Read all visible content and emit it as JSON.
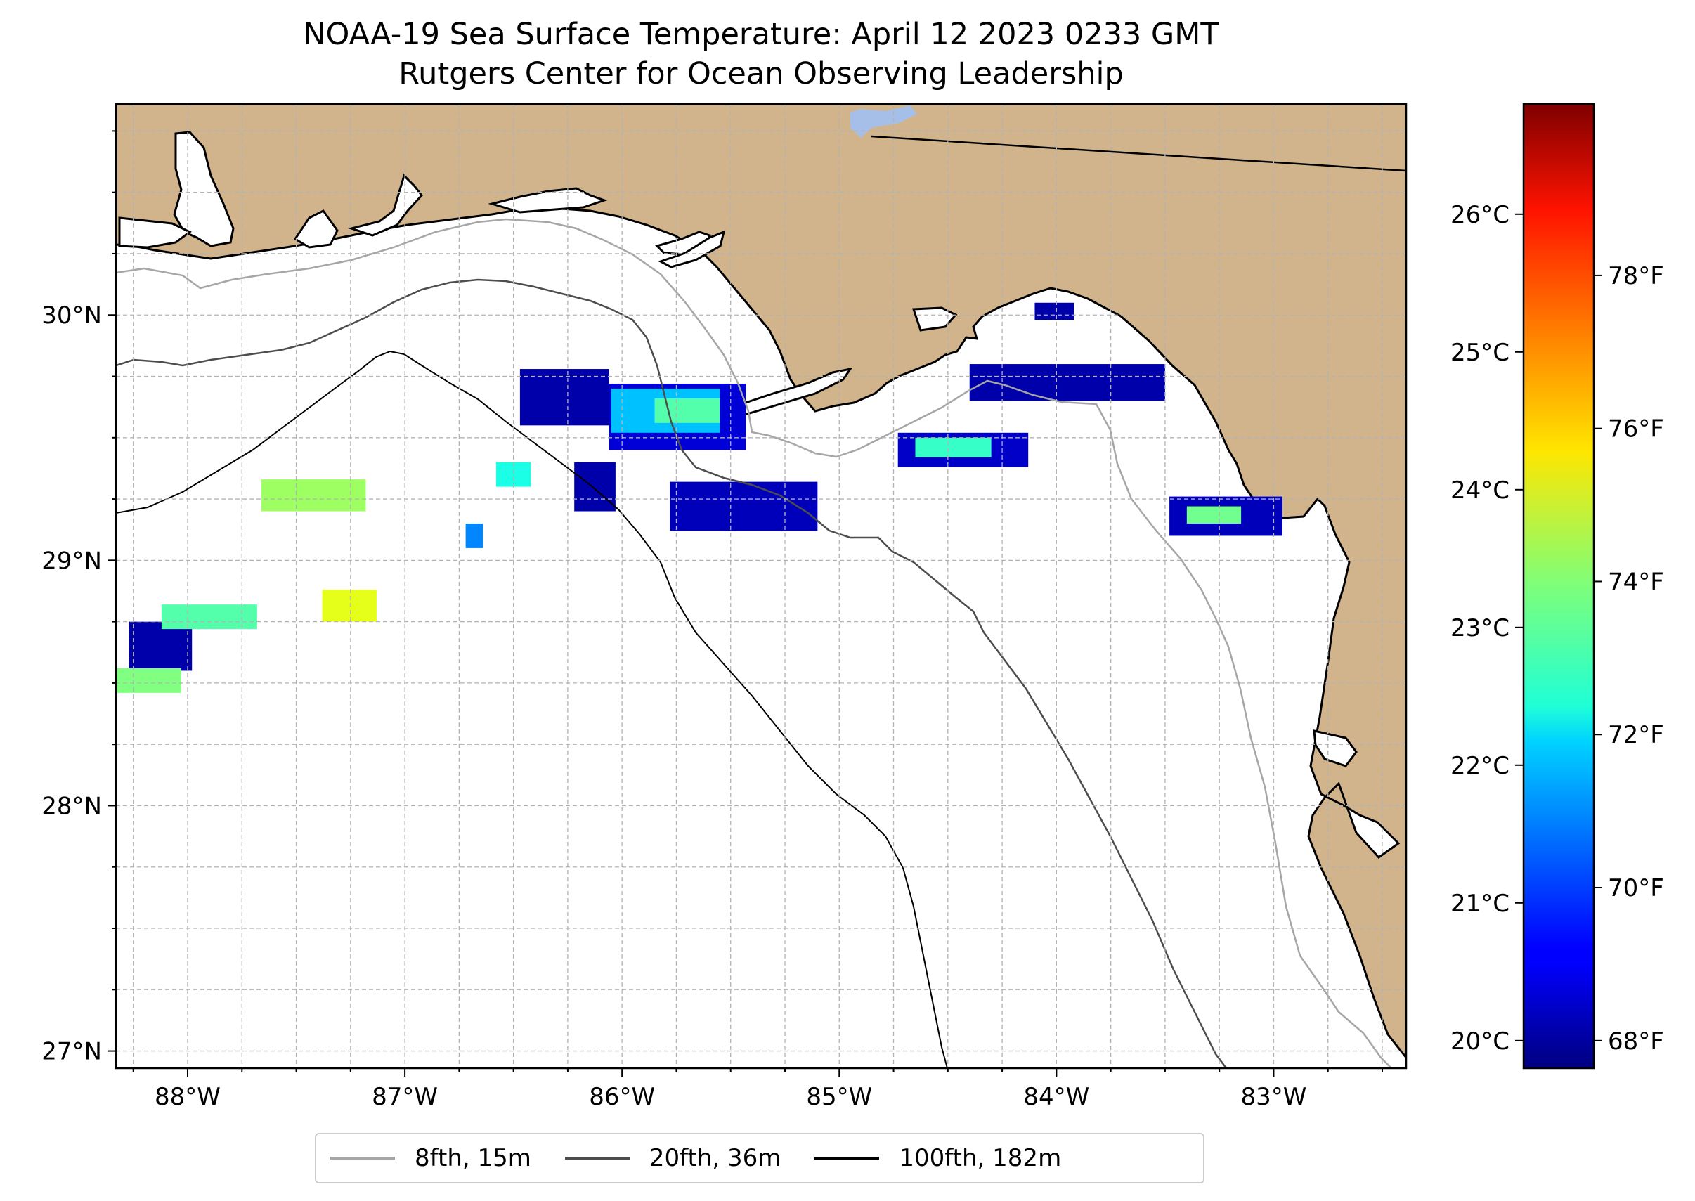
{
  "title": {
    "line1": "NOAA-19 Sea Surface Temperature: April 12 2023 0233 GMT",
    "line2": "Rutgers Center for Ocean Observing Leadership"
  },
  "map": {
    "lon_range": [
      -88.33,
      -82.39
    ],
    "lat_range": [
      26.93,
      30.86
    ],
    "land_color": "#d2b48c",
    "ocean_color": "#ffffff",
    "lake_color": "#a6bfe8",
    "gridlines": "dashed",
    "lon_ticks": [
      {
        "value": -88,
        "label": "88°W"
      },
      {
        "value": -87,
        "label": "87°W"
      },
      {
        "value": -86,
        "label": "86°W"
      },
      {
        "value": -85,
        "label": "85°W"
      },
      {
        "value": -84,
        "label": "84°W"
      },
      {
        "value": -83,
        "label": "83°W"
      }
    ],
    "lat_ticks": [
      {
        "value": 30,
        "label": "30°N"
      },
      {
        "value": 29,
        "label": "29°N"
      },
      {
        "value": 28,
        "label": "28°N"
      },
      {
        "value": 27,
        "label": "27°N"
      }
    ]
  },
  "colorbar": {
    "colormap": "jet",
    "range_c": [
      19.8,
      26.8
    ],
    "celsius_ticks": [
      {
        "value": 20,
        "label": "20°C"
      },
      {
        "value": 21,
        "label": "21°C"
      },
      {
        "value": 22,
        "label": "22°C"
      },
      {
        "value": 23,
        "label": "23°C"
      },
      {
        "value": 24,
        "label": "24°C"
      },
      {
        "value": 25,
        "label": "25°C"
      },
      {
        "value": 26,
        "label": "26°C"
      }
    ],
    "fahrenheit_ticks": [
      {
        "value": 68,
        "label": "68°F"
      },
      {
        "value": 70,
        "label": "70°F"
      },
      {
        "value": 72,
        "label": "72°F"
      },
      {
        "value": 74,
        "label": "74°F"
      },
      {
        "value": 76,
        "label": "76°F"
      },
      {
        "value": 78,
        "label": "78°F"
      }
    ]
  },
  "legend": {
    "placement": "bottom-center",
    "items": [
      {
        "label": "8fth, 15m",
        "color": "#a6a6a6"
      },
      {
        "label": "20fth, 36m",
        "color": "#4d4d4d"
      },
      {
        "label": "100fth, 182m",
        "color": "#000000"
      }
    ]
  },
  "sst_patches": [
    {
      "lat": [
        29.55,
        29.78
      ],
      "lon": [
        -86.47,
        -86.06
      ],
      "temp_c": 20.1
    },
    {
      "lat": [
        29.45,
        29.72
      ],
      "lon": [
        -86.06,
        -85.43
      ],
      "temp_c": 20.4
    },
    {
      "lat": [
        29.52,
        29.7
      ],
      "lon": [
        -86.05,
        -85.55
      ],
      "temp_c": 22.0
    },
    {
      "lat": [
        29.56,
        29.66
      ],
      "lon": [
        -85.85,
        -85.55
      ],
      "temp_c": 23.0
    },
    {
      "lat": [
        29.65,
        29.8
      ],
      "lon": [
        -84.4,
        -83.5
      ],
      "temp_c": 20.1
    },
    {
      "lat": [
        29.38,
        29.52
      ],
      "lon": [
        -84.73,
        -84.13
      ],
      "temp_c": 20.3
    },
    {
      "lat": [
        29.42,
        29.5
      ],
      "lon": [
        -84.65,
        -84.3
      ],
      "temp_c": 22.8
    },
    {
      "lat": [
        29.12,
        29.32
      ],
      "lon": [
        -85.78,
        -85.1
      ],
      "temp_c": 20.2
    },
    {
      "lat": [
        29.1,
        29.26
      ],
      "lon": [
        -83.48,
        -82.96
      ],
      "temp_c": 20.2
    },
    {
      "lat": [
        29.15,
        29.22
      ],
      "lon": [
        -83.4,
        -83.15
      ],
      "temp_c": 23.2
    },
    {
      "lat": [
        29.2,
        29.33
      ],
      "lon": [
        -87.66,
        -87.18
      ],
      "temp_c": 23.5
    },
    {
      "lat": [
        28.75,
        28.88
      ],
      "lon": [
        -87.38,
        -87.13
      ],
      "temp_c": 24.0
    },
    {
      "lat": [
        28.55,
        28.75
      ],
      "lon": [
        -88.27,
        -87.98
      ],
      "temp_c": 20.1
    },
    {
      "lat": [
        28.72,
        28.82
      ],
      "lon": [
        -88.12,
        -87.68
      ],
      "temp_c": 23.0
    },
    {
      "lat": [
        28.46,
        28.56
      ],
      "lon": [
        -88.33,
        -88.03
      ],
      "temp_c": 23.3
    },
    {
      "lat": [
        29.2,
        29.4
      ],
      "lon": [
        -86.22,
        -86.03
      ],
      "temp_c": 20.1
    },
    {
      "lat": [
        29.3,
        29.4
      ],
      "lon": [
        -86.58,
        -86.42
      ],
      "temp_c": 22.6
    },
    {
      "lat": [
        29.05,
        29.15
      ],
      "lon": [
        -86.72,
        -86.64
      ],
      "temp_c": 21.6
    },
    {
      "lat": [
        29.98,
        30.05
      ],
      "lon": [
        -84.1,
        -83.92
      ],
      "temp_c": 20.1
    }
  ]
}
